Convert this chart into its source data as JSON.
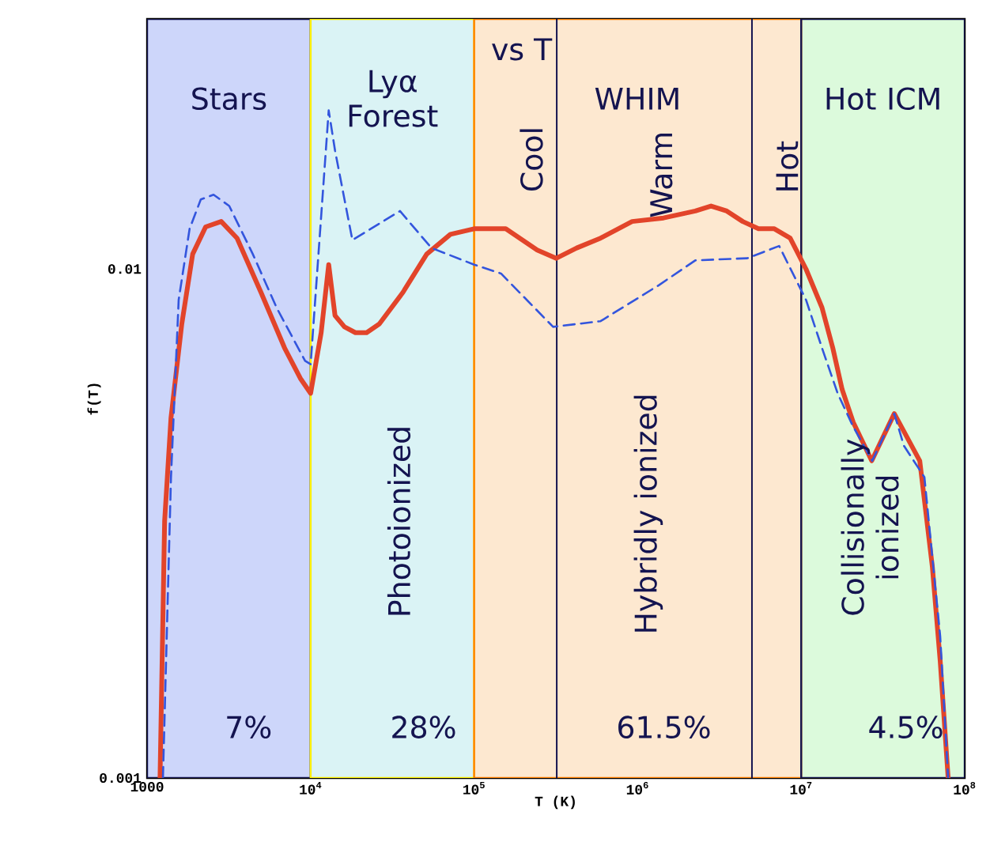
{
  "chart_data": {
    "type": "line",
    "xlabel": "T (K)",
    "ylabel": "f(T)",
    "log": "xy",
    "xlim": [
      1000,
      100000000
    ],
    "ylim": [
      0.001,
      0.031
    ],
    "xticks": [
      1000,
      {
        "value": 10000,
        "label": "10$^{4}$"
      },
      {
        "value": 100000,
        "label": "10$^{5}$"
      },
      {
        "value": 1000000,
        "label": "10$^{6}$"
      },
      {
        "value": 10000000,
        "label": "10$^{7}$"
      },
      {
        "value": 100000000,
        "label": "10$^{8}$"
      }
    ],
    "yticks": [
      0.001,
      0.01
    ],
    "marker": "none",
    "series": [
      {
        "color": "#e2442a",
        "line_style": "solid",
        "x": [
          1200,
          1280,
          1400,
          1630,
          1900,
          2280,
          2840,
          3550,
          4970,
          6930,
          8650,
          10000,
          11600,
          12900,
          14100,
          16100,
          18800,
          22000,
          26300,
          36700,
          51300,
          71600,
          100000,
          156000,
          243000,
          318000,
          424000,
          593000,
          925000,
          1440000,
          2250000,
          2810000,
          3510000,
          4390000,
          5480000,
          6850000,
          8560000,
          10700000,
          13400000,
          15600000,
          17800000,
          20800000,
          27000000,
          37100000,
          53100000,
          63400000,
          70800000,
          79200000
        ],
        "values": [
          0.001,
          0.0032,
          0.0051,
          0.0078,
          0.0107,
          0.0121,
          0.0124,
          0.0115,
          0.009,
          0.007,
          0.0061,
          0.0057,
          0.0075,
          0.0102,
          0.0081,
          0.0077,
          0.0075,
          0.0075,
          0.0078,
          0.009,
          0.0107,
          0.0117,
          0.012,
          0.012,
          0.0109,
          0.0105,
          0.011,
          0.0115,
          0.0124,
          0.0126,
          0.013,
          0.0133,
          0.013,
          0.0124,
          0.012,
          0.012,
          0.0115,
          0.01,
          0.0084,
          0.007,
          0.0058,
          0.005,
          0.0042,
          0.0052,
          0.0042,
          0.0026,
          0.0017,
          0.001
        ]
      },
      {
        "color": "#3355dd",
        "line_style": "dashed",
        "x": [
          1250,
          1400,
          1560,
          1820,
          2130,
          2550,
          3180,
          4430,
          6190,
          9250,
          10000,
          12900,
          14100,
          18000,
          35200,
          54800,
          100000,
          146000,
          304000,
          593000,
          1350000,
          2250000,
          4690000,
          7330000,
          10700000,
          13400000,
          16700000,
          20800000,
          27200000,
          37100000,
          42400000,
          56700000,
          70800000,
          79200000
        ],
        "values": [
          0.001,
          0.0039,
          0.0087,
          0.012,
          0.0137,
          0.014,
          0.0133,
          0.0107,
          0.0084,
          0.0066,
          0.0065,
          0.0205,
          0.0171,
          0.0114,
          0.013,
          0.011,
          0.0102,
          0.0098,
          0.0077,
          0.0079,
          0.0093,
          0.0104,
          0.0105,
          0.0111,
          0.0087,
          0.007,
          0.0057,
          0.0049,
          0.0042,
          0.0052,
          0.0045,
          0.0039,
          0.0019,
          0.001
        ]
      }
    ],
    "bands": [
      {
        "axis": "x",
        "from": 1000,
        "to": 10000,
        "label": "Stars",
        "color": "#cdd6fa"
      },
      {
        "axis": "x",
        "from": 10000,
        "to": 100000,
        "label": "Lyα Forest",
        "color": "#daf3f5"
      },
      {
        "axis": "x",
        "from": 100000,
        "to": 10000000,
        "label": "WHIM",
        "color": "#fde8d0"
      },
      {
        "axis": "x",
        "from": 10000000,
        "to": 100000000,
        "label": "Hot ICM",
        "color": "#dcfadc"
      }
    ],
    "ref_lines": [
      {
        "axis": "x",
        "value": 320000,
        "color": "#141450"
      },
      {
        "axis": "x",
        "value": 5000000,
        "color": "#141450"
      }
    ],
    "annotations": [
      "vs T",
      "Cool",
      "Warm",
      "Hot",
      "Photoionized",
      "Hybridly ionized",
      "Collisionally ionized",
      "7%",
      "28%",
      "61.5%",
      "4.5%"
    ]
  }
}
